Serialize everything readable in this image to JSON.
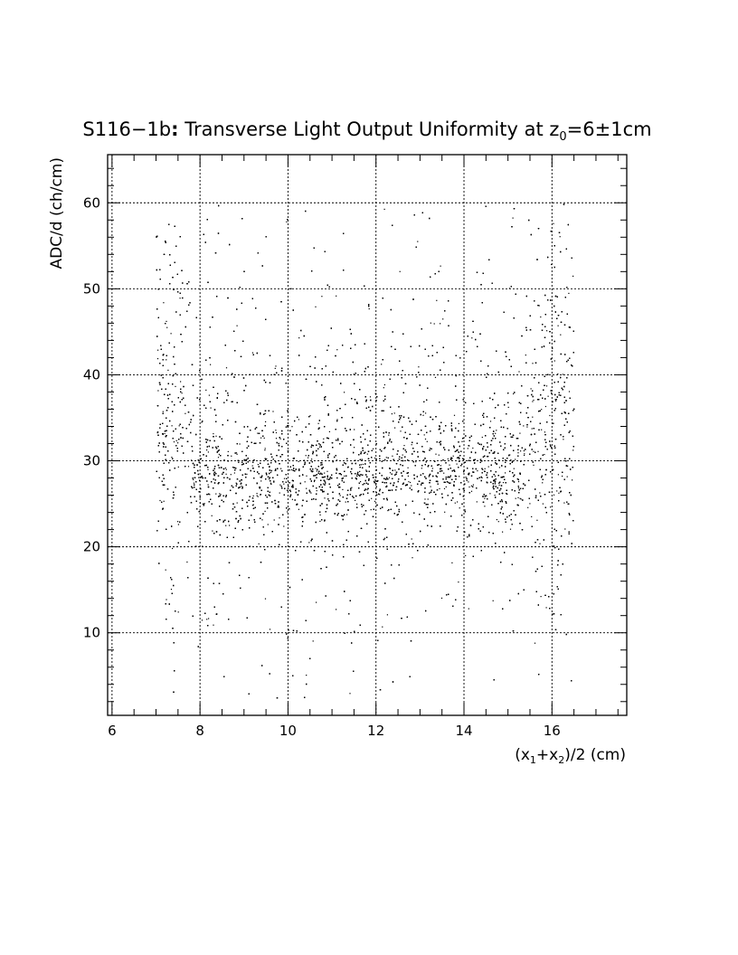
{
  "chart_data": {
    "type": "scatter",
    "title": {
      "prefix": "S116−1b",
      "colon": ":",
      "main": " Transverse Light Output Uniformity at z",
      "subscript": "0",
      "suffix": "=6±1cm"
    },
    "xlabel": {
      "p1": "(x",
      "sub1": "1",
      "p2": "+x",
      "sub2": "2",
      "p3": ")/2 (cm)"
    },
    "ylabel": "ADC/d (ch/cm)",
    "xlim": [
      5.9,
      17.7
    ],
    "ylim": [
      0.4,
      65.6
    ],
    "x_ticks": [
      6,
      8,
      10,
      12,
      14,
      16
    ],
    "x_tick_labels": [
      "6",
      "8",
      "10",
      "12",
      "14",
      "16"
    ],
    "y_ticks": [
      10,
      20,
      30,
      40,
      50,
      60
    ],
    "y_tick_labels": [
      "10",
      "20",
      "30",
      "40",
      "50",
      "60"
    ],
    "grid": true,
    "grid_style": "dashed",
    "point_color": "#000000",
    "distribution": {
      "x_range": [
        7.0,
        16.5
      ],
      "y_range": [
        2.0,
        60.0
      ],
      "core_y_center": 28.0,
      "core_y_spread": 3.0,
      "approx_points": 11000
    }
  }
}
